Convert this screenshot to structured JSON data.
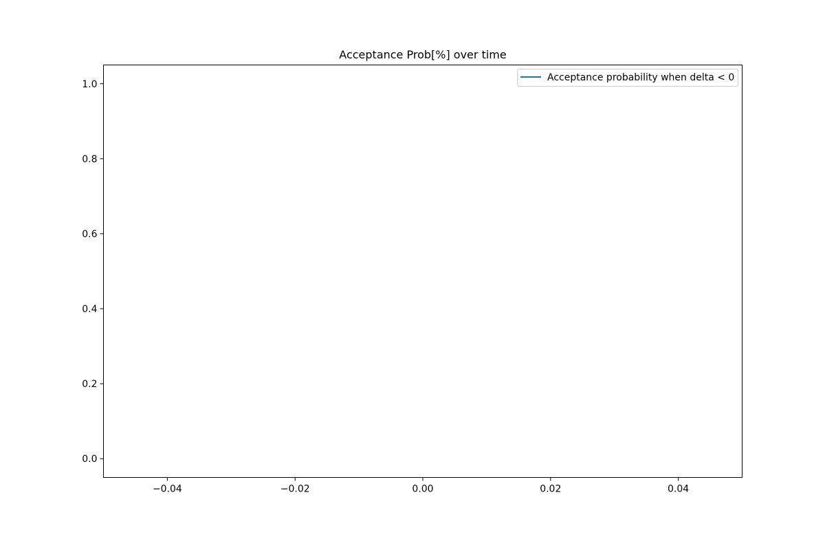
{
  "chart_data": {
    "type": "line",
    "title": "Acceptance Prob[%] over time",
    "xlabel": "",
    "ylabel": "",
    "xlim": [
      -0.05,
      0.05
    ],
    "ylim": [
      -0.05,
      1.05
    ],
    "x_ticks": [
      -0.04,
      -0.02,
      0.0,
      0.02,
      0.04
    ],
    "x_tick_labels": [
      "−0.04",
      "−0.02",
      "0.00",
      "0.02",
      "0.04"
    ],
    "y_ticks": [
      0.0,
      0.2,
      0.4,
      0.6,
      0.8,
      1.0
    ],
    "y_tick_labels": [
      "0.0",
      "0.2",
      "0.4",
      "0.6",
      "0.8",
      "1.0"
    ],
    "grid": false,
    "legend_position": "top-right",
    "series": [
      {
        "name": "Acceptance probability when delta < 0",
        "color": "#1f77b4",
        "x": [],
        "y": []
      }
    ]
  }
}
